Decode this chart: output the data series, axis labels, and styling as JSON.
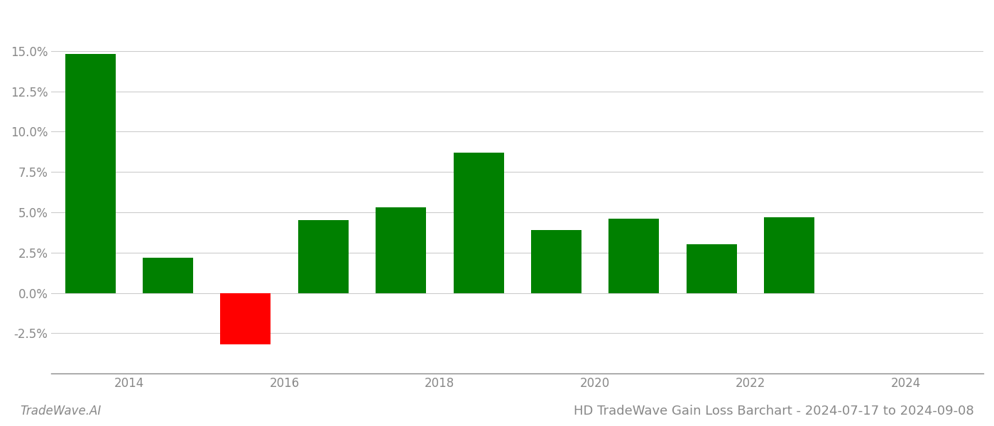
{
  "years": [
    2013,
    2014,
    2015,
    2016,
    2017,
    2018,
    2019,
    2020,
    2021,
    2022
  ],
  "values": [
    0.148,
    0.022,
    -0.032,
    0.045,
    0.053,
    0.087,
    0.039,
    0.046,
    0.03,
    0.047
  ],
  "bar_colors": [
    "#008000",
    "#008000",
    "#ff0000",
    "#008000",
    "#008000",
    "#008000",
    "#008000",
    "#008000",
    "#008000",
    "#008000"
  ],
  "title": "HD TradeWave Gain Loss Barchart - 2024-07-17 to 2024-09-08",
  "watermark": "TradeWave.AI",
  "ylim": [
    -0.05,
    0.175
  ],
  "yticks": [
    -0.025,
    0.0,
    0.025,
    0.05,
    0.075,
    0.1,
    0.125,
    0.15
  ],
  "xtick_positions": [
    2013.5,
    2015.5,
    2017.5,
    2019.5,
    2021.5,
    2023.5
  ],
  "xtick_labels": [
    "2014",
    "2016",
    "2018",
    "2020",
    "2022",
    "2024"
  ],
  "background_color": "#ffffff",
  "grid_color": "#cccccc",
  "bar_width": 0.65,
  "title_fontsize": 13,
  "tick_fontsize": 12,
  "watermark_fontsize": 12
}
